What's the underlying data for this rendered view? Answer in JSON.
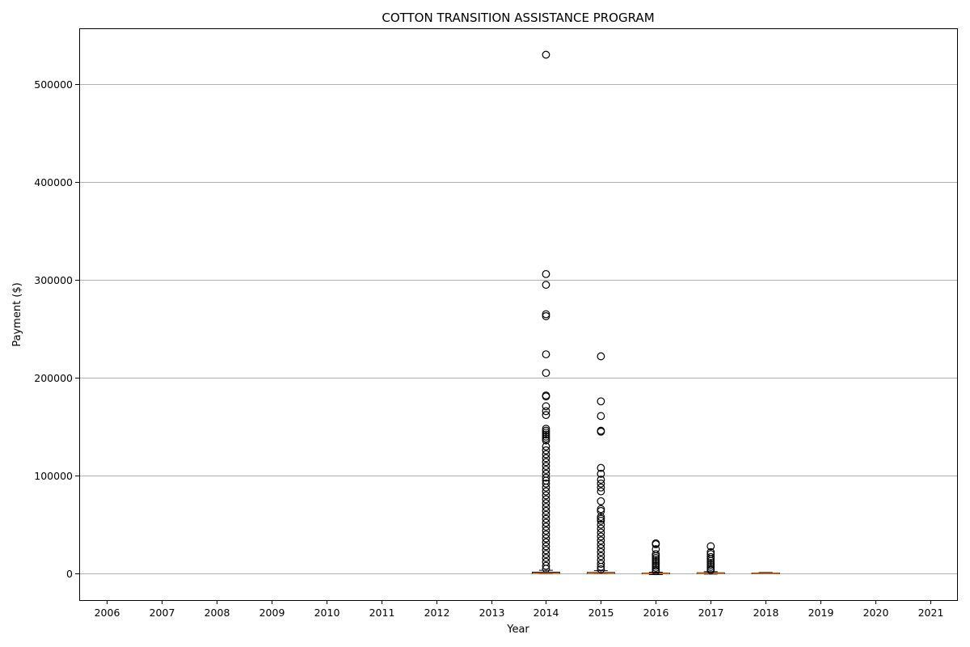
{
  "chart_data": {
    "type": "box",
    "title": "COTTON TRANSITION ASSISTANCE PROGRAM",
    "xlabel": "Year",
    "ylabel": "Payment ($)",
    "categories": [
      "2006",
      "2007",
      "2008",
      "2009",
      "2010",
      "2011",
      "2012",
      "2013",
      "2014",
      "2015",
      "2016",
      "2017",
      "2018",
      "2019",
      "2020",
      "2021"
    ],
    "yticks": [
      0,
      100000,
      200000,
      300000,
      400000,
      500000
    ],
    "ylim": [
      -27000,
      557000
    ],
    "grid": "horizontal",
    "boxes": [
      {
        "category": "2014",
        "q1": 150,
        "median": 500,
        "q3": 1500,
        "whisker_low": 0,
        "whisker_high": 3500,
        "fliers": [
          530000,
          306000,
          295000,
          265000,
          263000,
          224000,
          205000,
          182000,
          181000,
          171000,
          166000,
          162000,
          148000,
          146000,
          144000,
          142000,
          140000,
          138000,
          136000,
          130000,
          126000,
          122000,
          118000,
          114000,
          110000,
          106000,
          102000,
          98000,
          95000,
          92000,
          88000,
          84000,
          80000,
          76000,
          72000,
          68000,
          64000,
          60000,
          56000,
          52000,
          48000,
          44000,
          40000,
          36000,
          32000,
          28000,
          24000,
          20000,
          16000,
          12000,
          8000,
          5000
        ]
      },
      {
        "category": "2015",
        "q1": 100,
        "median": 400,
        "q3": 1200,
        "whisker_low": 0,
        "whisker_high": 3000,
        "fliers": [
          222000,
          176000,
          161000,
          146000,
          145000,
          108000,
          102000,
          96000,
          92000,
          88000,
          84000,
          74000,
          66000,
          64000,
          58000,
          56000,
          54000,
          50000,
          46000,
          42000,
          38000,
          34000,
          30000,
          26000,
          22000,
          18000,
          14000,
          10000,
          7000,
          4500
        ]
      },
      {
        "category": "2016",
        "q1": 50,
        "median": 200,
        "q3": 600,
        "whisker_low": -1000,
        "whisker_high": 1500,
        "fliers": [
          31000,
          30000,
          25000,
          20000,
          18000,
          16000,
          14000,
          12000,
          10000,
          8000,
          6000,
          4000,
          2500
        ]
      },
      {
        "category": "2017",
        "q1": 50,
        "median": 300,
        "q3": 900,
        "whisker_low": -500,
        "whisker_high": 2000,
        "fliers": [
          28000,
          22000,
          20000,
          17000,
          15000,
          13000,
          11000,
          9000,
          7000,
          5000,
          3500
        ]
      },
      {
        "category": "2018",
        "q1": 100,
        "median": 300,
        "q3": 700,
        "whisker_low": 0,
        "whisker_high": 1200,
        "fliers": []
      }
    ],
    "colors": {
      "median": "#e07b2a",
      "grid": "#b0b0b0",
      "frame": "#000000"
    }
  }
}
